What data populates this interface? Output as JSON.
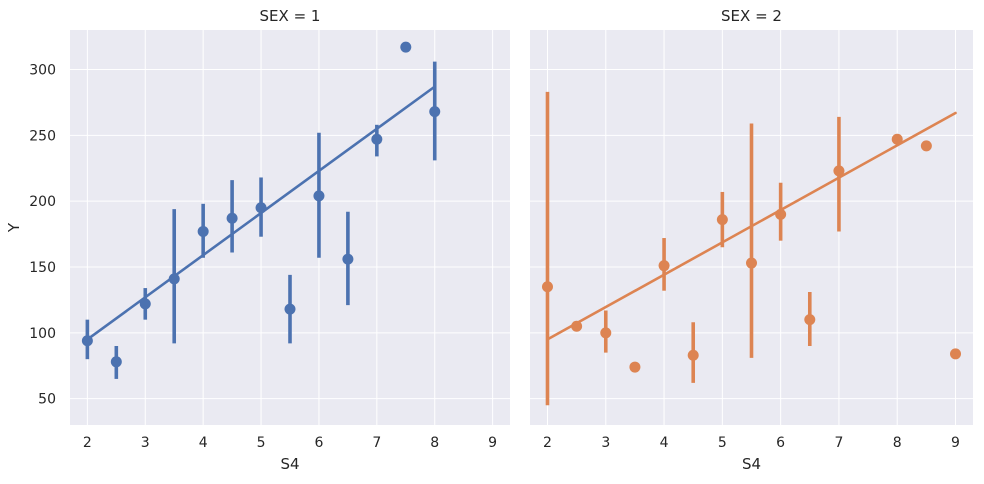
{
  "chart_data": [
    {
      "type": "scatter",
      "title": "SEX = 1",
      "xlabel": "S4",
      "ylabel": "Y",
      "xlim": [
        1.7,
        9.3
      ],
      "ylim": [
        30,
        330
      ],
      "xticks": [
        2,
        3,
        4,
        5,
        6,
        7,
        8,
        9
      ],
      "yticks": [
        50,
        100,
        150,
        200,
        250,
        300
      ],
      "grid": true,
      "color": "#4c72b0",
      "points": [
        {
          "x": 2.0,
          "y": 94,
          "lo": 80,
          "hi": 110
        },
        {
          "x": 2.5,
          "y": 78,
          "lo": 65,
          "hi": 90
        },
        {
          "x": 3.0,
          "y": 122,
          "lo": 110,
          "hi": 134
        },
        {
          "x": 3.5,
          "y": 141,
          "lo": 92,
          "hi": 194
        },
        {
          "x": 4.0,
          "y": 177,
          "lo": 157,
          "hi": 198
        },
        {
          "x": 4.5,
          "y": 187,
          "lo": 161,
          "hi": 216
        },
        {
          "x": 5.0,
          "y": 195,
          "lo": 173,
          "hi": 218
        },
        {
          "x": 5.5,
          "y": 118,
          "lo": 92,
          "hi": 144
        },
        {
          "x": 6.0,
          "y": 204,
          "lo": 157,
          "hi": 252
        },
        {
          "x": 6.5,
          "y": 156,
          "lo": 121,
          "hi": 192
        },
        {
          "x": 7.0,
          "y": 247,
          "lo": 234,
          "hi": 258
        },
        {
          "x": 7.5,
          "y": 317,
          "lo": 317,
          "hi": 317
        },
        {
          "x": 8.0,
          "y": 268,
          "lo": 231,
          "hi": 306
        }
      ],
      "regression": {
        "x": [
          2.0,
          8.0
        ],
        "y": [
          95,
          287
        ]
      }
    },
    {
      "type": "scatter",
      "title": "SEX = 2",
      "xlabel": "S4",
      "ylabel": "",
      "xlim": [
        1.7,
        9.3
      ],
      "ylim": [
        30,
        330
      ],
      "xticks": [
        2,
        3,
        4,
        5,
        6,
        7,
        8,
        9
      ],
      "yticks": [
        50,
        100,
        150,
        200,
        250,
        300
      ],
      "grid": true,
      "color": "#dd8452",
      "points": [
        {
          "x": 2.0,
          "y": 135,
          "lo": 45,
          "hi": 283
        },
        {
          "x": 2.5,
          "y": 105,
          "lo": 105,
          "hi": 105
        },
        {
          "x": 3.0,
          "y": 100,
          "lo": 85,
          "hi": 117
        },
        {
          "x": 3.5,
          "y": 74,
          "lo": 74,
          "hi": 74
        },
        {
          "x": 4.0,
          "y": 151,
          "lo": 132,
          "hi": 172
        },
        {
          "x": 4.5,
          "y": 83,
          "lo": 62,
          "hi": 108
        },
        {
          "x": 5.0,
          "y": 186,
          "lo": 165,
          "hi": 207
        },
        {
          "x": 5.5,
          "y": 153,
          "lo": 81,
          "hi": 259
        },
        {
          "x": 6.0,
          "y": 190,
          "lo": 170,
          "hi": 214
        },
        {
          "x": 6.5,
          "y": 110,
          "lo": 90,
          "hi": 131
        },
        {
          "x": 7.0,
          "y": 223,
          "lo": 177,
          "hi": 264
        },
        {
          "x": 8.0,
          "y": 247,
          "lo": 247,
          "hi": 247
        },
        {
          "x": 8.5,
          "y": 242,
          "lo": 242,
          "hi": 242
        },
        {
          "x": 9.0,
          "y": 84,
          "lo": 84,
          "hi": 84
        }
      ],
      "regression": {
        "x": [
          2.0,
          9.0
        ],
        "y": [
          95,
          267
        ]
      }
    }
  ],
  "style": {
    "panel_background": "#eaeaf2",
    "grid_color": "#ffffff",
    "text_color": "#262626"
  }
}
